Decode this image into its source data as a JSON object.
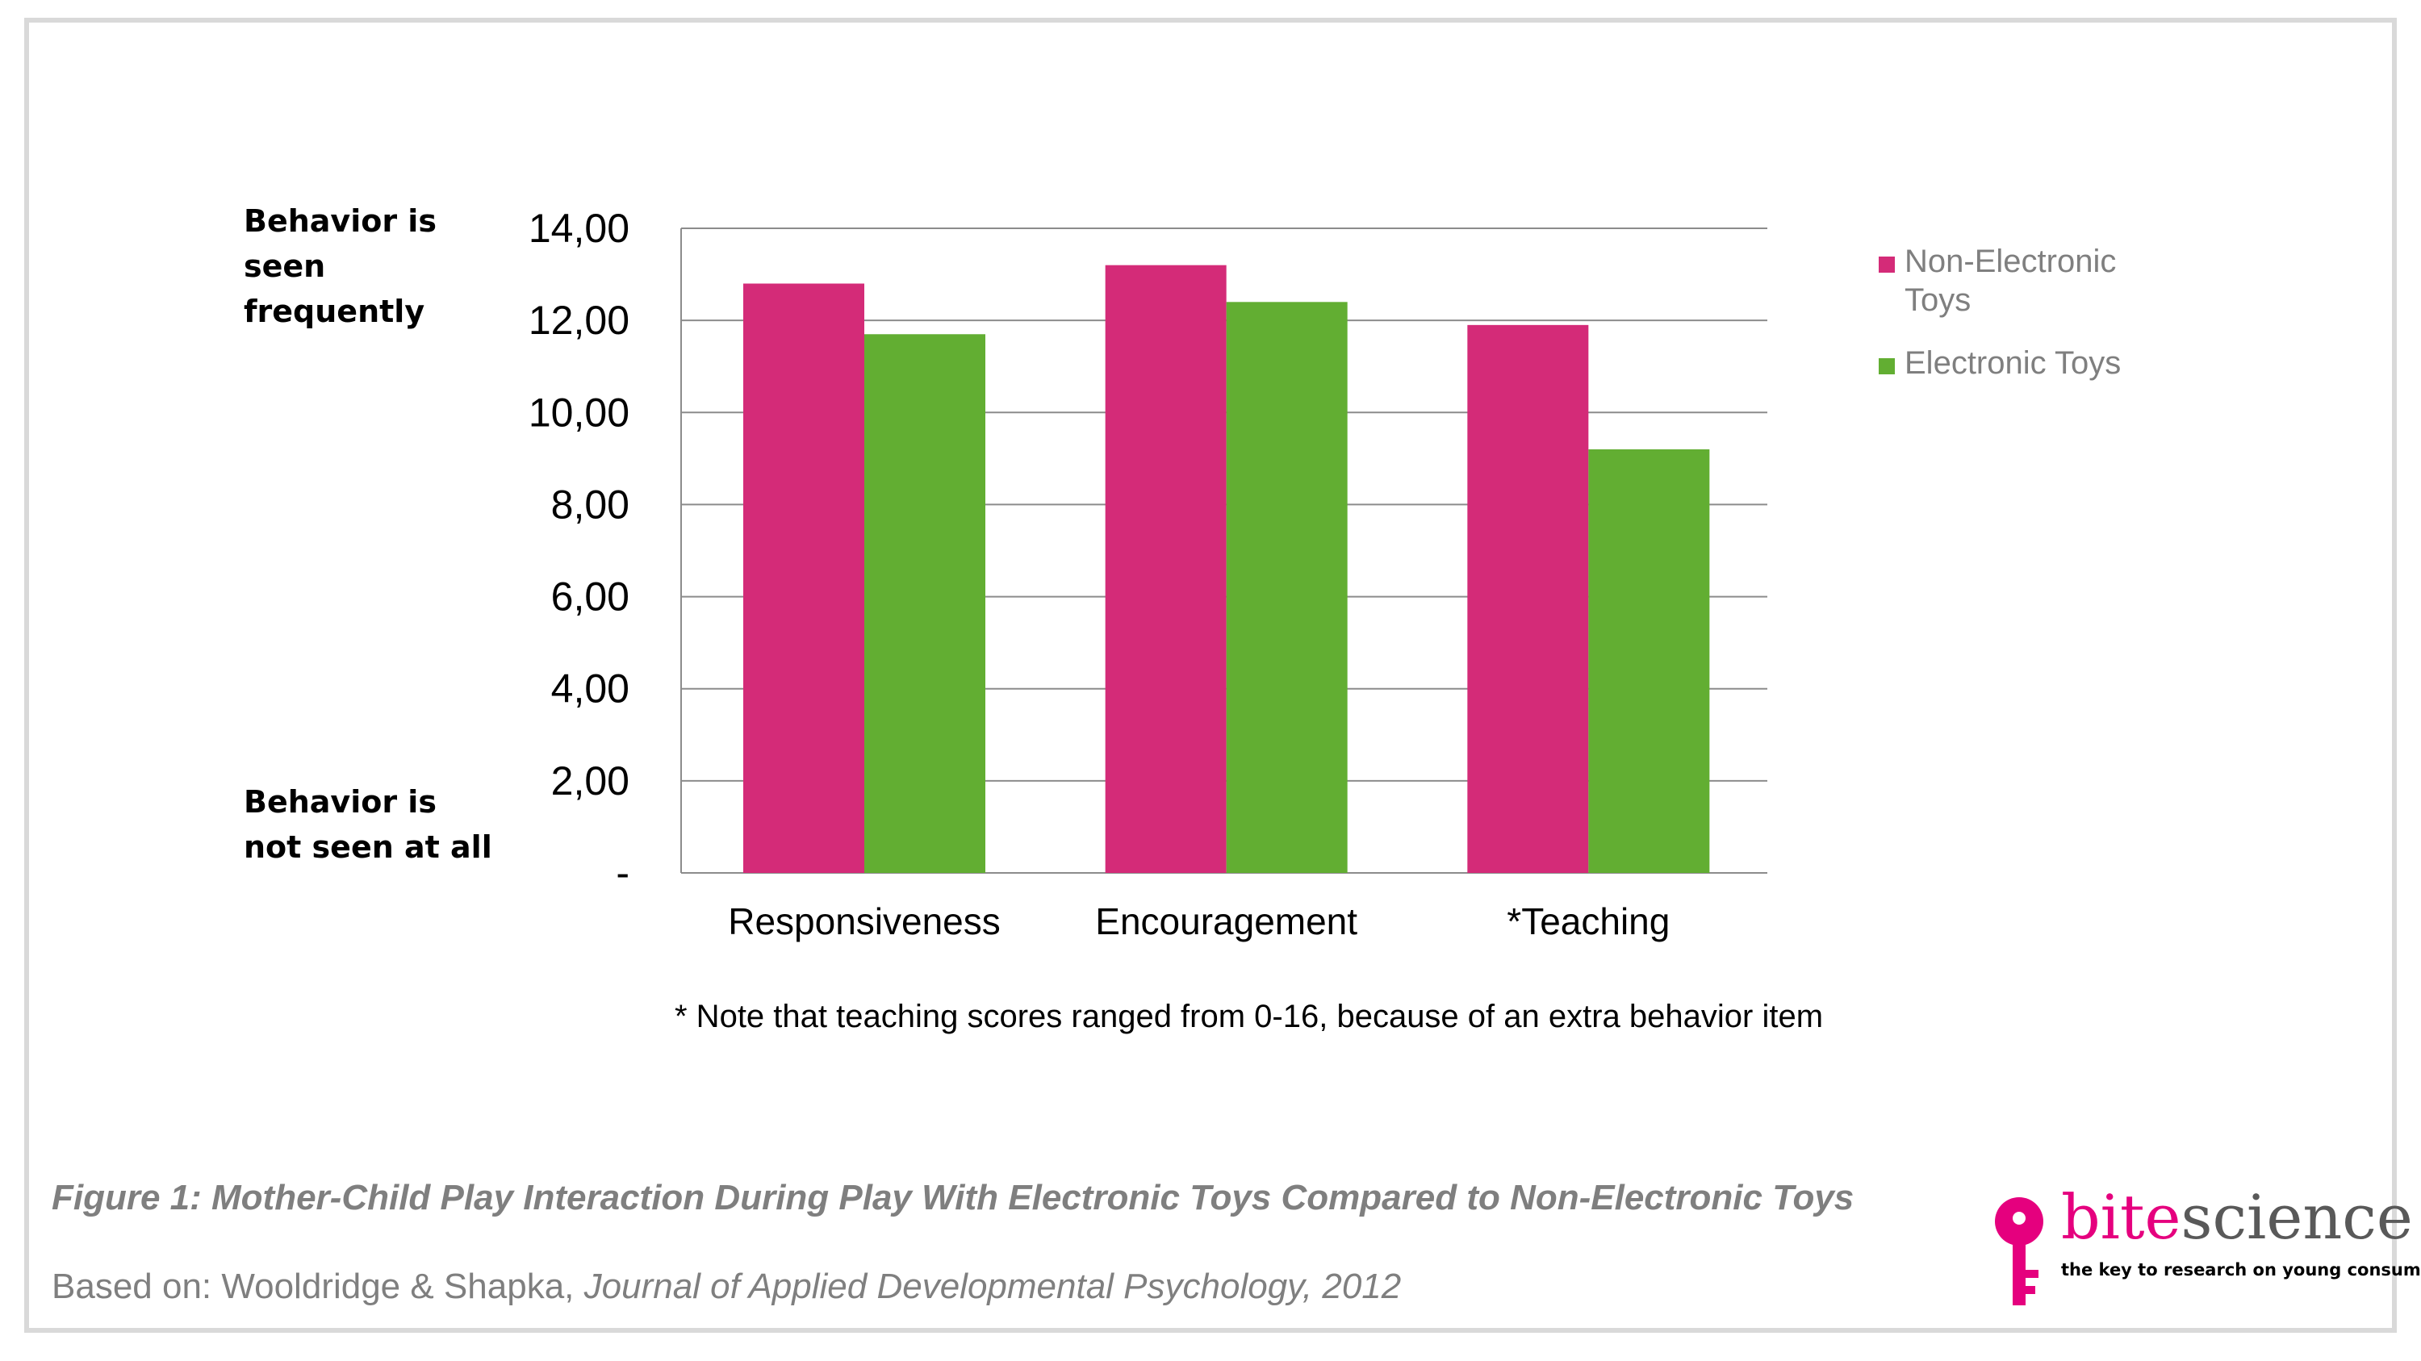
{
  "chart_data": {
    "type": "bar",
    "categories": [
      "Responsiveness",
      "Encouragement",
      "*Teaching"
    ],
    "series": [
      {
        "name": "Non-Electronic Toys",
        "values": [
          12.8,
          13.2,
          11.9
        ],
        "color": "#d42b78"
      },
      {
        "name": "Electronic Toys",
        "values": [
          11.7,
          12.4,
          9.2
        ],
        "color": "#62ae32"
      }
    ],
    "ylim": [
      0,
      14
    ],
    "yticks": [
      {
        "value": 0,
        "label": "-"
      },
      {
        "value": 2,
        "label": "2,00"
      },
      {
        "value": 4,
        "label": "4,00"
      },
      {
        "value": 6,
        "label": "6,00"
      },
      {
        "value": 8,
        "label": "8,00"
      },
      {
        "value": 10,
        "label": "10,00"
      },
      {
        "value": 12,
        "label": "12,00"
      },
      {
        "value": 14,
        "label": "14,00"
      }
    ],
    "grid": true,
    "legend_position": "right",
    "annotations": {
      "y_top": [
        "Behavior is",
        "seen",
        "frequently"
      ],
      "y_bottom": [
        "Behavior is",
        "not seen at all"
      ]
    },
    "note": "* Note that teaching scores ranged from 0-16, because of an extra behavior item"
  },
  "caption": "Figure 1: Mother-Child Play Interaction During Play With Electronic Toys Compared to Non-Electronic Toys",
  "source": {
    "prefix": "Based on: Wooldridge & Shapka, ",
    "journal": "Journal of Applied Developmental Psychology, 2012"
  },
  "logo": {
    "word_accent": "bite",
    "word_rest": "science",
    "tagline": "the key to research on young consumers",
    "colors": {
      "accent": "#e5007e",
      "rest": "#595959"
    }
  }
}
